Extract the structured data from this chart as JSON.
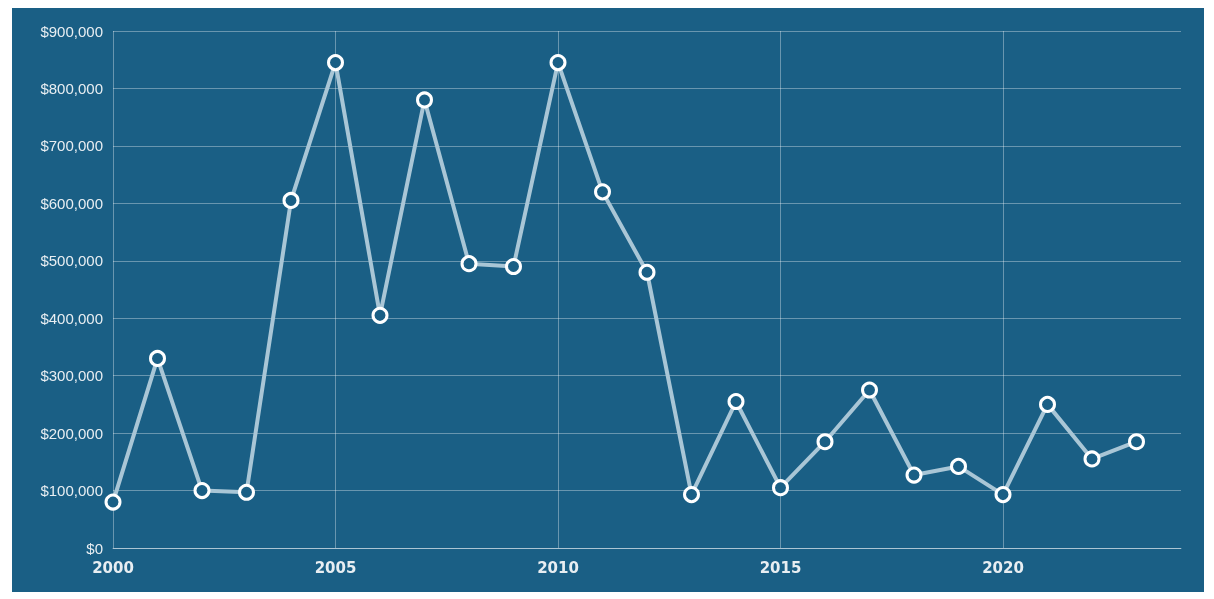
{
  "chart_data": {
    "type": "line",
    "x": [
      2000,
      2001,
      2002,
      2003,
      2004,
      2005,
      2006,
      2007,
      2008,
      2009,
      2010,
      2011,
      2012,
      2013,
      2014,
      2015,
      2016,
      2017,
      2018,
      2019,
      2020,
      2021,
      2022,
      2023
    ],
    "series": [
      {
        "color": "#a9c6d6",
        "values": [
          80000,
          330000,
          100000,
          97000,
          605000,
          845000,
          405000,
          780000,
          495000,
          490000,
          845000,
          620000,
          480000,
          93000,
          255000,
          105000,
          185000,
          275000,
          127000,
          142000,
          93000,
          250000,
          155000,
          185000
        ]
      }
    ],
    "xlim": [
      2000,
      2024
    ],
    "xticks": [
      2000,
      2005,
      2010,
      2015,
      2020
    ],
    "ylim": [
      0,
      900000
    ],
    "yticks": [
      {
        "value": 0,
        "label": "$0"
      },
      {
        "value": 100000,
        "label": "$100,000"
      },
      {
        "value": 200000,
        "label": "$200,000"
      },
      {
        "value": 300000,
        "label": "$300,000"
      },
      {
        "value": 400000,
        "label": "$400,000"
      },
      {
        "value": 500000,
        "label": "$500,000"
      },
      {
        "value": 600000,
        "label": "$600,000"
      },
      {
        "value": 700000,
        "label": "$700,000"
      },
      {
        "value": 800000,
        "label": "$800,000"
      },
      {
        "value": 900000,
        "label": "$900,000"
      }
    ],
    "grid": true,
    "marker": "circle",
    "line_style": "solid"
  }
}
